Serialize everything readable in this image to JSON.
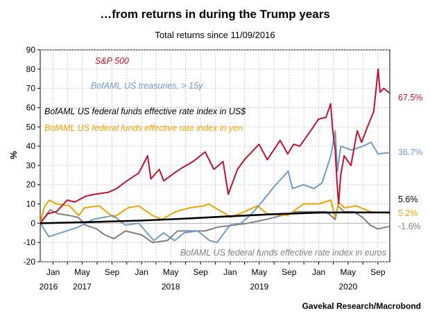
{
  "chart_data": {
    "type": "line",
    "title": "…from returns in during the Trump years",
    "subtitle": "Total returns since 11/09/2016",
    "ylabel": "%",
    "source": "Gavekal Research/Macrobond",
    "ylim": [
      -20,
      90
    ],
    "yticks": [
      -20,
      -10,
      0,
      10,
      20,
      30,
      40,
      50,
      60,
      70,
      80,
      90
    ],
    "x_start": "2016-11-09",
    "x_end": "2020-10-20",
    "month_ticks": [
      {
        "date": "2016-11-01",
        "label": ""
      },
      {
        "date": "2017-01-01",
        "label": "Jan"
      },
      {
        "date": "2017-03-01",
        "label": ""
      },
      {
        "date": "2017-05-01",
        "label": "May"
      },
      {
        "date": "2017-07-01",
        "label": ""
      },
      {
        "date": "2017-09-01",
        "label": "Sep"
      },
      {
        "date": "2017-11-01",
        "label": ""
      },
      {
        "date": "2018-01-01",
        "label": "Jan"
      },
      {
        "date": "2018-03-01",
        "label": ""
      },
      {
        "date": "2018-05-01",
        "label": "May"
      },
      {
        "date": "2018-07-01",
        "label": ""
      },
      {
        "date": "2018-09-01",
        "label": "Sep"
      },
      {
        "date": "2018-11-01",
        "label": ""
      },
      {
        "date": "2019-01-01",
        "label": "Jan"
      },
      {
        "date": "2019-03-01",
        "label": ""
      },
      {
        "date": "2019-05-01",
        "label": "May"
      },
      {
        "date": "2019-07-01",
        "label": ""
      },
      {
        "date": "2019-09-01",
        "label": "Sep"
      },
      {
        "date": "2019-11-01",
        "label": ""
      },
      {
        "date": "2020-01-01",
        "label": "Jan"
      },
      {
        "date": "2020-03-01",
        "label": ""
      },
      {
        "date": "2020-05-01",
        "label": "May"
      },
      {
        "date": "2020-07-01",
        "label": ""
      },
      {
        "date": "2020-09-01",
        "label": "Sep"
      }
    ],
    "year_labels": [
      {
        "date": "2016-11-09",
        "label": "2016"
      },
      {
        "date": "2017-05-01",
        "label": "2017"
      },
      {
        "date": "2018-05-01",
        "label": "2018"
      },
      {
        "date": "2019-05-01",
        "label": "2019"
      },
      {
        "date": "2020-05-01",
        "label": "2020"
      }
    ],
    "grid": true,
    "series": [
      {
        "name": "S&P 500",
        "color": "#c0102c",
        "end_label": "67.5%",
        "points": [
          [
            "2016-11-09",
            0
          ],
          [
            "2016-12-10",
            5
          ],
          [
            "2017-01-15",
            6
          ],
          [
            "2017-02-28",
            12
          ],
          [
            "2017-04-01",
            11
          ],
          [
            "2017-05-15",
            14
          ],
          [
            "2017-06-20",
            15
          ],
          [
            "2017-08-15",
            16
          ],
          [
            "2017-09-20",
            18
          ],
          [
            "2017-11-01",
            22
          ],
          [
            "2017-12-20",
            26
          ],
          [
            "2018-01-26",
            35
          ],
          [
            "2018-02-08",
            23
          ],
          [
            "2018-03-15",
            28
          ],
          [
            "2018-04-02",
            22
          ],
          [
            "2018-05-15",
            26
          ],
          [
            "2018-06-20",
            29
          ],
          [
            "2018-08-01",
            32
          ],
          [
            "2018-09-20",
            37
          ],
          [
            "2018-10-26",
            28
          ],
          [
            "2018-12-03",
            32
          ],
          [
            "2018-12-24",
            15
          ],
          [
            "2019-01-31",
            28
          ],
          [
            "2019-03-01",
            33
          ],
          [
            "2019-04-30",
            41
          ],
          [
            "2019-06-03",
            33
          ],
          [
            "2019-07-26",
            43
          ],
          [
            "2019-08-26",
            36
          ],
          [
            "2019-09-20",
            41
          ],
          [
            "2019-10-15",
            40
          ],
          [
            "2019-11-29",
            48
          ],
          [
            "2019-12-31",
            54
          ],
          [
            "2020-01-31",
            55
          ],
          [
            "2020-02-19",
            62
          ],
          [
            "2020-02-28",
            48
          ],
          [
            "2020-03-09",
            38
          ],
          [
            "2020-03-16",
            22
          ],
          [
            "2020-03-23",
            10
          ],
          [
            "2020-04-01",
            25
          ],
          [
            "2020-04-15",
            35
          ],
          [
            "2020-05-13",
            30
          ],
          [
            "2020-06-08",
            48
          ],
          [
            "2020-06-26",
            42
          ],
          [
            "2020-07-20",
            50
          ],
          [
            "2020-08-15",
            58
          ],
          [
            "2020-09-02",
            80
          ],
          [
            "2020-09-10",
            68
          ],
          [
            "2020-09-25",
            70
          ],
          [
            "2020-10-20",
            67.5
          ]
        ]
      },
      {
        "name": "BofAML US treasuries, > 15y",
        "color": "#6f9ac9",
        "end_label": "36.7%",
        "points": [
          [
            "2016-11-09",
            0
          ],
          [
            "2016-12-15",
            -7
          ],
          [
            "2017-02-01",
            -5
          ],
          [
            "2017-04-15",
            -2
          ],
          [
            "2017-06-15",
            2
          ],
          [
            "2017-09-07",
            4
          ],
          [
            "2017-10-25",
            -1
          ],
          [
            "2017-12-20",
            0
          ],
          [
            "2018-02-20",
            -9
          ],
          [
            "2018-04-01",
            -5
          ],
          [
            "2018-05-17",
            -9
          ],
          [
            "2018-06-25",
            -5
          ],
          [
            "2018-08-20",
            -4
          ],
          [
            "2018-10-08",
            -9
          ],
          [
            "2018-11-08",
            -10
          ],
          [
            "2018-12-31",
            -1
          ],
          [
            "2019-02-15",
            0
          ],
          [
            "2019-04-01",
            5
          ],
          [
            "2019-05-31",
            14
          ],
          [
            "2019-07-01",
            19
          ],
          [
            "2019-08-28",
            27
          ],
          [
            "2019-09-15",
            18
          ],
          [
            "2019-10-30",
            20
          ],
          [
            "2019-12-13",
            18
          ],
          [
            "2020-01-15",
            21
          ],
          [
            "2020-02-20",
            35
          ],
          [
            "2020-03-09",
            48
          ],
          [
            "2020-03-18",
            27
          ],
          [
            "2020-04-01",
            40
          ],
          [
            "2020-05-15",
            38
          ],
          [
            "2020-07-01",
            40
          ],
          [
            "2020-08-04",
            42
          ],
          [
            "2020-09-01",
            36
          ],
          [
            "2020-10-20",
            36.7
          ]
        ]
      },
      {
        "name": "BofAML US federal funds effective rate index in US$",
        "color": "#000000",
        "end_label": "5.6%",
        "points": [
          [
            "2016-11-09",
            0
          ],
          [
            "2017-06-01",
            0.6
          ],
          [
            "2017-12-31",
            1.4
          ],
          [
            "2018-06-30",
            2.4
          ],
          [
            "2018-12-31",
            3.6
          ],
          [
            "2019-06-30",
            4.7
          ],
          [
            "2019-12-31",
            5.5
          ],
          [
            "2020-03-15",
            5.6
          ],
          [
            "2020-10-20",
            5.6
          ]
        ]
      },
      {
        "name": "BofAML US federal funds effective rate index in yen",
        "color": "#f0a000",
        "end_label": "5.2%",
        "points": [
          [
            "2016-11-09",
            0
          ],
          [
            "2016-11-25",
            8
          ],
          [
            "2016-12-15",
            12
          ],
          [
            "2017-01-15",
            10
          ],
          [
            "2017-03-10",
            9
          ],
          [
            "2017-04-17",
            4
          ],
          [
            "2017-05-10",
            8
          ],
          [
            "2017-07-10",
            9
          ],
          [
            "2017-09-08",
            3
          ],
          [
            "2017-11-06",
            8
          ],
          [
            "2017-12-20",
            9
          ],
          [
            "2018-02-15",
            4
          ],
          [
            "2018-03-26",
            2
          ],
          [
            "2018-05-21",
            6
          ],
          [
            "2018-07-19",
            8
          ],
          [
            "2018-09-15",
            9
          ],
          [
            "2018-10-04",
            10
          ],
          [
            "2018-12-24",
            4
          ],
          [
            "2019-01-03",
            3
          ],
          [
            "2019-03-01",
            6
          ],
          [
            "2019-04-24",
            9
          ],
          [
            "2019-06-01",
            5
          ],
          [
            "2019-08-26",
            4
          ],
          [
            "2019-10-30",
            10
          ],
          [
            "2019-12-31",
            10
          ],
          [
            "2020-02-20",
            12
          ],
          [
            "2020-03-09",
            3
          ],
          [
            "2020-03-24",
            11
          ],
          [
            "2020-04-15",
            8
          ],
          [
            "2020-06-05",
            9
          ],
          [
            "2020-07-31",
            6
          ],
          [
            "2020-10-20",
            5.2
          ]
        ]
      },
      {
        "name": "BofAML US federal funds effective rate index in euros",
        "color": "#808080",
        "end_label": "-1.6%",
        "points": [
          [
            "2016-11-09",
            0
          ],
          [
            "2016-12-20",
            7
          ],
          [
            "2017-01-20",
            5
          ],
          [
            "2017-03-10",
            4
          ],
          [
            "2017-04-15",
            3
          ],
          [
            "2017-05-15",
            -1
          ],
          [
            "2017-06-30",
            -3
          ],
          [
            "2017-08-01",
            -6
          ],
          [
            "2017-09-08",
            -8
          ],
          [
            "2017-10-27",
            -4
          ],
          [
            "2017-12-31",
            -6
          ],
          [
            "2018-02-15",
            -10
          ],
          [
            "2018-04-17",
            -9
          ],
          [
            "2018-05-29",
            -4
          ],
          [
            "2018-07-15",
            -4
          ],
          [
            "2018-09-20",
            -4
          ],
          [
            "2018-11-12",
            -2
          ],
          [
            "2019-01-15",
            -1
          ],
          [
            "2019-03-15",
            0
          ],
          [
            "2019-05-30",
            2
          ],
          [
            "2019-08-01",
            4
          ],
          [
            "2019-09-30",
            6
          ],
          [
            "2019-11-29",
            6
          ],
          [
            "2020-01-31",
            6
          ],
          [
            "2020-03-09",
            2
          ],
          [
            "2020-03-20",
            9
          ],
          [
            "2020-04-15",
            6
          ],
          [
            "2020-05-25",
            6
          ],
          [
            "2020-06-30",
            3
          ],
          [
            "2020-07-31",
            -1
          ],
          [
            "2020-09-01",
            -3
          ],
          [
            "2020-10-20",
            -1.6
          ]
        ]
      }
    ]
  }
}
